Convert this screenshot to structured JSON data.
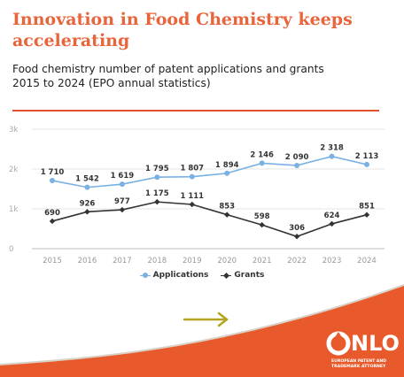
{
  "header": {
    "title": "Innovation in Food Chemistry keeps accelerating",
    "subtitle_line1": "Food chemistry number of patent applications and grants",
    "subtitle_line2": "2015 to 2024 (EPO annual statistics)"
  },
  "colors": {
    "accent": "#e8643a",
    "footer": "#e85a2c",
    "applications": "#7ab0e2",
    "grants": "#333333",
    "arrow": "#b4a31f"
  },
  "chart_data": {
    "type": "line",
    "x": [
      "2015",
      "2016",
      "2017",
      "2018",
      "2019",
      "2020",
      "2021",
      "2022",
      "2023",
      "2024"
    ],
    "y_ticks": [
      "0",
      "1k",
      "2k",
      "3k"
    ],
    "ylim": [
      0,
      3000
    ],
    "grid": true,
    "legend_position": "bottom",
    "series": [
      {
        "name": "Applications",
        "values": [
          1710,
          1542,
          1619,
          1795,
          1807,
          1894,
          2146,
          2090,
          2318,
          2113
        ],
        "labels": [
          "1 710",
          "1 542",
          "1 619",
          "1 795",
          "1 807",
          "1 894",
          "2 146",
          "2 090",
          "2 318",
          "2 113"
        ]
      },
      {
        "name": "Grants",
        "values": [
          690,
          926,
          977,
          1175,
          1111,
          853,
          598,
          306,
          624,
          851
        ],
        "labels": [
          "690",
          "926",
          "977",
          "1 175",
          "1 111",
          "853",
          "598",
          "306",
          "624",
          "851"
        ]
      }
    ]
  },
  "footer": {
    "arrow_icon": "arrow-right-icon",
    "logo_text": "NLO",
    "logo_sub_line1": "EUROPEAN PATENT AND",
    "logo_sub_line2": "TRADEMARK ATTORNEY"
  }
}
